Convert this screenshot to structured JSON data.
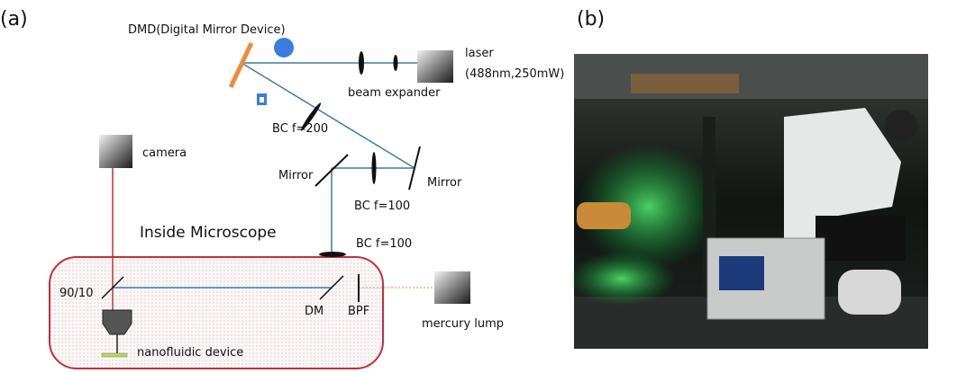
{
  "panel_a": {
    "label": "(a)",
    "dmd": "DMD(Digital Mirror Device)",
    "laser": "laser",
    "laser_spec": "(488nm,250mW)",
    "beam_expander": "beam expander",
    "bc_200": "BC f=200",
    "camera": "camera",
    "mirror_left": "Mirror",
    "mirror_right": "Mirror",
    "bc_100_upper": "BC f=100",
    "inside_microscope": "Inside Microscope",
    "bc_100_lower": "BC f=100",
    "splitter": "90/10",
    "dm": "DM",
    "bpf": "BPF",
    "mercury_lamp": "mercury lump",
    "nanofluidic_device": "nanofluidic device"
  },
  "panel_b": {
    "label": "(b)"
  }
}
